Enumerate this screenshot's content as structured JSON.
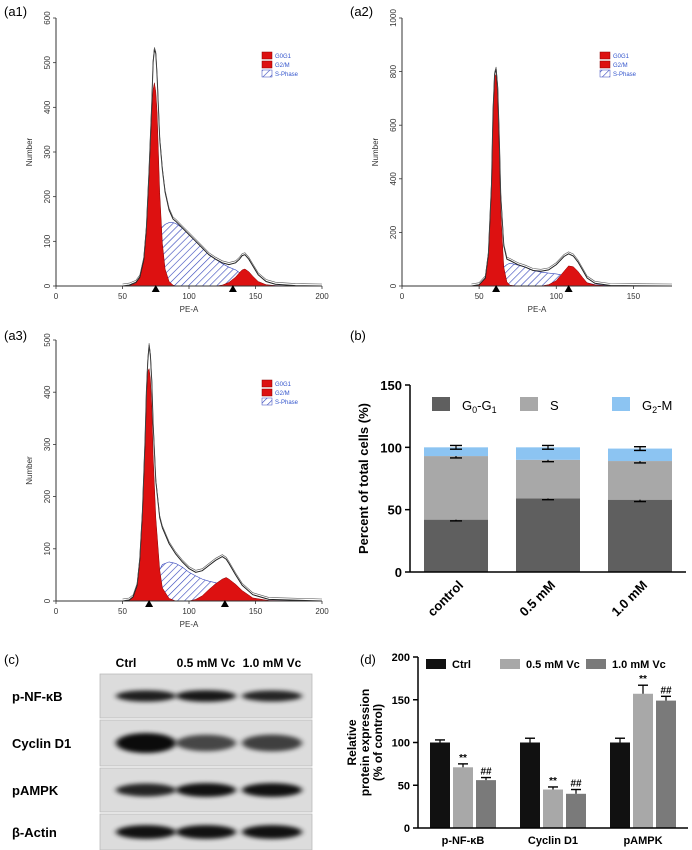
{
  "panels": {
    "a1": "(a1)",
    "a2": "(a2)",
    "a3": "(a3)",
    "b": "(b)",
    "c": "(c)",
    "d": "(d)"
  },
  "flow_legend": [
    "G0G1",
    "G2/M",
    "S-Phase"
  ],
  "flow_colors": {
    "g0g1": "#dd1111",
    "s_phase": "#3344bb"
  },
  "chart_data": [
    {
      "type": "area",
      "panel": "(a1)",
      "xlabel": "PE-A",
      "ylabel": "Number",
      "xlim": [
        0,
        200
      ],
      "ylim": [
        0,
        600
      ],
      "xticks": [
        "0",
        "50",
        "100",
        "150",
        "200"
      ],
      "yticks": [
        "0",
        "100",
        "200",
        "300",
        "400",
        "500",
        "600"
      ],
      "legend": [
        "G0G1",
        "G2/M",
        "S-Phase"
      ],
      "marker_x": [
        75,
        133
      ],
      "x": [
        50,
        55,
        60,
        63,
        66,
        68,
        70,
        72,
        73,
        74,
        75,
        76,
        77,
        78,
        80,
        82,
        85,
        88,
        90,
        95,
        100,
        105,
        110,
        115,
        120,
        125,
        130,
        135,
        138,
        140,
        142,
        145,
        148,
        152,
        158,
        165,
        180,
        200
      ],
      "total": [
        0,
        2,
        8,
        20,
        60,
        130,
        260,
        410,
        500,
        530,
        520,
        470,
        400,
        330,
        260,
        210,
        170,
        150,
        145,
        130,
        115,
        100,
        85,
        70,
        60,
        52,
        48,
        52,
        60,
        68,
        70,
        60,
        45,
        25,
        10,
        4,
        1,
        0
      ],
      "g0g1": [
        0,
        1,
        6,
        18,
        55,
        125,
        250,
        390,
        440,
        455,
        435,
        390,
        300,
        210,
        95,
        38,
        10,
        2,
        0,
        0,
        0,
        0,
        0,
        0,
        0,
        0,
        0,
        0,
        0,
        0,
        0,
        0,
        0,
        0,
        0,
        0,
        0,
        0
      ],
      "g2m": [
        0,
        0,
        0,
        0,
        0,
        0,
        0,
        0,
        0,
        0,
        0,
        0,
        0,
        0,
        0,
        0,
        0,
        0,
        0,
        0,
        0,
        0,
        0,
        0,
        0,
        2,
        8,
        20,
        30,
        36,
        38,
        32,
        22,
        10,
        3,
        1,
        0,
        0
      ],
      "sphase": [
        0,
        0,
        0,
        2,
        8,
        18,
        30,
        50,
        70,
        85,
        100,
        110,
        118,
        125,
        132,
        138,
        142,
        142,
        140,
        130,
        115,
        100,
        85,
        70,
        60,
        50,
        42,
        36,
        30,
        26,
        22,
        16,
        10,
        5,
        2,
        1,
        0,
        0
      ]
    },
    {
      "type": "area",
      "panel": "(a2)",
      "xlabel": "PE-A",
      "ylabel": "Number",
      "xlim": [
        0,
        175
      ],
      "ylim": [
        0,
        1000
      ],
      "xticks": [
        "0",
        "50",
        "100",
        "150"
      ],
      "yticks": [
        "0",
        "200",
        "400",
        "600",
        "800",
        "1000"
      ],
      "legend": [
        "G0G1",
        "G2/M",
        "S-Phase"
      ],
      "marker_x": [
        61,
        108
      ],
      "x": [
        45,
        50,
        54,
        56,
        58,
        59,
        60,
        61,
        62,
        63,
        64,
        66,
        68,
        70,
        75,
        80,
        85,
        90,
        95,
        100,
        105,
        108,
        111,
        114,
        117,
        120,
        125,
        135,
        175
      ],
      "total": [
        0,
        5,
        30,
        120,
        380,
        650,
        790,
        810,
        740,
        560,
        340,
        150,
        100,
        95,
        80,
        70,
        58,
        55,
        60,
        80,
        110,
        120,
        112,
        90,
        60,
        30,
        10,
        2,
        0
      ],
      "g0g1": [
        0,
        5,
        28,
        115,
        370,
        640,
        780,
        790,
        710,
        510,
        280,
        70,
        15,
        3,
        0,
        0,
        0,
        0,
        0,
        0,
        0,
        0,
        0,
        0,
        0,
        0,
        0,
        0,
        0
      ],
      "g2m": [
        0,
        0,
        0,
        0,
        0,
        0,
        0,
        0,
        0,
        0,
        0,
        0,
        0,
        0,
        0,
        0,
        0,
        0,
        5,
        20,
        55,
        75,
        72,
        55,
        32,
        12,
        4,
        0,
        0
      ],
      "sphase": [
        0,
        0,
        0,
        2,
        6,
        10,
        15,
        25,
        35,
        45,
        55,
        70,
        80,
        85,
        78,
        70,
        58,
        52,
        48,
        45,
        40,
        35,
        30,
        25,
        18,
        12,
        5,
        1,
        0
      ]
    },
    {
      "type": "area",
      "panel": "(a3)",
      "xlabel": "PE-A",
      "ylabel": "Number",
      "xlim": [
        0,
        200
      ],
      "ylim": [
        0,
        500
      ],
      "xticks": [
        "0",
        "50",
        "100",
        "150",
        "200"
      ],
      "yticks": [
        "0",
        "100",
        "200",
        "300",
        "400",
        "500"
      ],
      "legend": [
        "G0G1",
        "G2/M",
        "S-Phase"
      ],
      "marker_x": [
        70,
        127
      ],
      "x": [
        50,
        55,
        58,
        61,
        63,
        65,
        67,
        68,
        69,
        70,
        71,
        72,
        73,
        75,
        78,
        80,
        85,
        90,
        95,
        100,
        105,
        110,
        115,
        120,
        125,
        128,
        130,
        135,
        140,
        148,
        160,
        200
      ],
      "total": [
        0,
        2,
        8,
        30,
        80,
        170,
        310,
        400,
        460,
        490,
        470,
        420,
        340,
        230,
        160,
        140,
        110,
        90,
        75,
        62,
        55,
        58,
        68,
        78,
        85,
        80,
        72,
        50,
        30,
        12,
        3,
        0
      ],
      "g0g1": [
        0,
        2,
        8,
        28,
        76,
        165,
        300,
        390,
        440,
        445,
        425,
        370,
        280,
        160,
        60,
        25,
        5,
        0,
        0,
        0,
        0,
        0,
        0,
        0,
        0,
        0,
        0,
        0,
        0,
        0,
        0,
        0
      ],
      "g2m": [
        0,
        0,
        0,
        0,
        0,
        0,
        0,
        0,
        0,
        0,
        0,
        0,
        0,
        0,
        0,
        0,
        0,
        0,
        0,
        0,
        3,
        10,
        22,
        33,
        42,
        45,
        42,
        32,
        20,
        6,
        1,
        0
      ],
      "sphase": [
        0,
        0,
        0,
        2,
        4,
        6,
        10,
        15,
        20,
        25,
        30,
        35,
        40,
        48,
        60,
        70,
        75,
        72,
        65,
        55,
        48,
        42,
        38,
        35,
        30,
        26,
        22,
        14,
        8,
        3,
        1,
        0
      ]
    },
    {
      "type": "bar",
      "stacked": true,
      "panel": "(b)",
      "ylabel": "Percent of total cells (%)",
      "ylim": [
        0,
        150
      ],
      "yticks": [
        "0",
        "50",
        "100",
        "150"
      ],
      "categories": [
        "control",
        "0.5 mM",
        "1.0 mM"
      ],
      "legend_position": "top",
      "series": [
        {
          "name": "G0-G1",
          "name_main": "G",
          "name_sub1": "0",
          "name_mid": "-G",
          "name_sub2": "1",
          "values": [
            42,
            59,
            58
          ],
          "errors": [
            1,
            1,
            1.5
          ],
          "color": "#5f5f5f"
        },
        {
          "name": "S",
          "name_main": "S",
          "values": [
            51,
            31,
            31
          ],
          "errors": [
            1.5,
            1.5,
            1.5
          ],
          "color": "#a8a8a8"
        },
        {
          "name": "G2-M",
          "name_main": "G",
          "name_sub1": "2",
          "name_mid": "-M",
          "values": [
            7,
            10,
            10
          ],
          "errors": [
            1.5,
            1.5,
            1.5
          ],
          "color": "#8cc4f2"
        }
      ]
    },
    {
      "type": "bar",
      "panel": "(d)",
      "ylabel_lines": [
        "Relative",
        "protein expression",
        "(% of control)"
      ],
      "ylim": [
        0,
        200
      ],
      "yticks": [
        "0",
        "50",
        "100",
        "150",
        "200"
      ],
      "categories": [
        "p-NF-κB",
        "Cyclin D1",
        "pAMPK"
      ],
      "legend_position": "top",
      "series": [
        {
          "name": "Ctrl",
          "values": [
            100,
            100,
            100
          ],
          "errors": [
            3,
            5,
            5
          ],
          "color": "#111111",
          "marks": [
            "",
            "",
            ""
          ]
        },
        {
          "name": "0.5 mM Vc",
          "values": [
            71,
            45,
            157
          ],
          "errors": [
            4,
            3,
            10
          ],
          "color": "#a8a8a8",
          "marks": [
            "**",
            "**",
            "**"
          ]
        },
        {
          "name": "1.0 mM Vc",
          "values": [
            56,
            40,
            149
          ],
          "errors": [
            3,
            5,
            5
          ],
          "color": "#7a7a7a",
          "marks": [
            "##",
            "##",
            "##"
          ]
        }
      ]
    }
  ],
  "blot": {
    "columns": [
      "Ctrl",
      "0.5 mM Vc",
      "1.0 mM Vc"
    ],
    "rows": [
      {
        "label": "p-NF-κB",
        "intensity": [
          0.85,
          0.9,
          0.8
        ]
      },
      {
        "label": "Cyclin D1",
        "intensity": [
          1.0,
          0.55,
          0.6
        ]
      },
      {
        "label": "pAMPK",
        "intensity": [
          0.8,
          0.95,
          0.95
        ]
      },
      {
        "label": "β-Actin",
        "intensity": [
          0.95,
          0.95,
          0.95
        ]
      }
    ]
  }
}
